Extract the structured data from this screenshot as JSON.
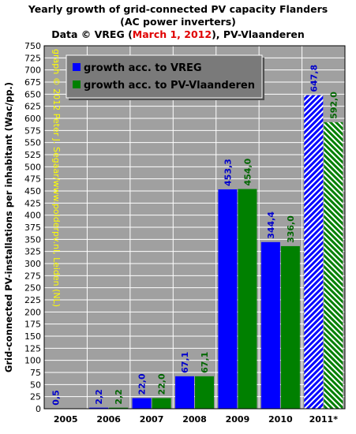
{
  "header": {
    "title_line1": "Yearly growth of grid-connected PV capacity Flanders",
    "title_line2": "(AC power inverters)",
    "title_line3_prefix": "Data © VREG (",
    "title_line3_date": "March 1, 2012",
    "title_line3_suffix": "), PV-Vlaanderen"
  },
  "chart_data": {
    "type": "bar",
    "title": "Yearly growth of grid-connected PV capacity Flanders (AC power inverters)",
    "subtitle": "Data © VREG (March 1, 2012), PV-Vlaanderen",
    "xlabel": "",
    "ylabel": "Grid-connected PV-installations per inhabitant (Wac/pp.)",
    "ylim": [
      0,
      750
    ],
    "ytick_step": 25,
    "grid": true,
    "legend_position": "top-left",
    "categories": [
      "2005",
      "2006",
      "2007",
      "2008",
      "2009",
      "2010",
      "2011*"
    ],
    "hatched_categories": [
      "2011*"
    ],
    "series": [
      {
        "name": "growth acc. to VREG",
        "color": "#0000ff",
        "label_color": "#0000cc",
        "values": [
          0.5,
          2.2,
          22.0,
          67.1,
          453.3,
          344.4,
          647.8
        ],
        "labels": [
          "0,5",
          "2,2",
          "22,0",
          "67,1",
          "453,3",
          "344,4",
          "647,8"
        ]
      },
      {
        "name": "growth acc. to PV-Vlaanderen",
        "color": "#008000",
        "label_color": "#006600",
        "values": [
          null,
          2.2,
          22.0,
          67.1,
          454.0,
          336.0,
          592.0
        ],
        "labels": [
          "",
          "2,2",
          "22,0",
          "67,1",
          "454,0",
          "336,0",
          "592,0"
        ]
      }
    ],
    "watermark": "graph © 2012 Peter J. Segaar/www.polderpv.nl, Leiden (NL)"
  },
  "colors": {
    "plot_background": "#a0a0a0",
    "grid": "#ffffff",
    "watermark": "#ffff00",
    "legend_background": "#7a7a7a",
    "title_accent": "#e00000"
  }
}
